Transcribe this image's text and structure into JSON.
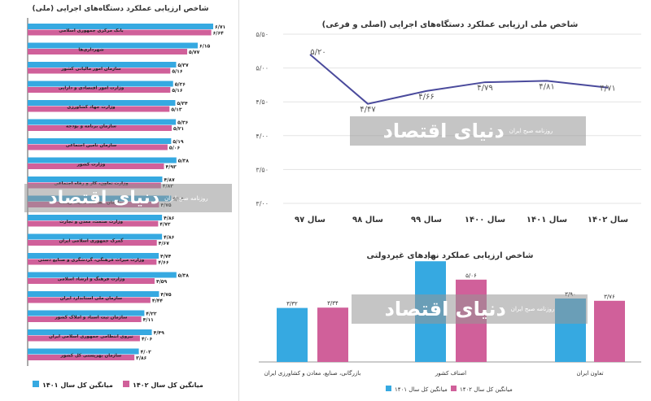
{
  "colors": {
    "series_1401": "#36a9e1",
    "series_1402": "#d0609a",
    "line": "#4a4a9c",
    "watermark": "#8c8c8c"
  },
  "watermark": {
    "brand": "دنیای اقتصاد",
    "tagline": "روزنامه صبح ایران"
  },
  "chart_data": [
    {
      "type": "bar",
      "orientation": "horizontal",
      "title": "شاخص ارزیابی عملکرد دستگاه‌های اجرایی (ملی)",
      "categories": [
        "بانک مرکزی جمهوری اسلامی",
        "شهرداری‌ها",
        "سازمان امور مالیاتی کشور",
        "وزارت امور اقتصادی و دارایی",
        "وزارت جهاد کشاورزی",
        "سازمان برنامه و بودجه",
        "سازمان تامین اجتماعی",
        "وزارت کشور",
        "وزارت تعاون، کار و رفاه اجتماعی",
        "سازمان حفاظت محیط زیست",
        "وزارت صنعت، معدن و تجارت",
        "گمرک جمهوری اسلامی ایران",
        "وزارت میراث فرهنگی، گردشگری و صنایع دستی",
        "وزارت فرهنگ و ارشاد اسلامی",
        "سازمان ملی استاندارد ایران",
        "سازمان ثبت اسناد و املاک کشور",
        "نیروی انتظامی جمهوری اسلامی ایران",
        "سازمان بهزیستی کل کشور"
      ],
      "value_labels_1401": [
        "۶/۷۱",
        "۶/۱۵",
        "۵/۳۷",
        "۵/۲۶",
        "۵/۳۴",
        "۵/۳۶",
        "۵/۱۹",
        "۵/۳۸",
        "۴/۸۷",
        "۵/۱۹",
        "۴/۸۶",
        "۴/۸۶",
        "۴/۷۴",
        "۵/۳۸",
        "۴/۷۵",
        "۴/۲۲",
        "۴/۴۹",
        "۴/۰۲"
      ],
      "value_labels_1402": [
        "۶/۶۴",
        "۵/۷۷",
        "۵/۱۶",
        "۵/۱۶",
        "۵/۱۳",
        "۵/۲۱",
        "۵/۰۶",
        "۴/۹۳",
        "۴/۸۲",
        "۴/۷۵",
        "۴/۷۲",
        "۴/۶۷",
        "۴/۶۶",
        "۴/۵۹",
        "۴/۴۴",
        "۴/۱۱",
        "۴/۰۶",
        "۳/۸۶"
      ],
      "series": [
        {
          "name": "میانگین کل سال ۱۴۰۱",
          "values": [
            6.71,
            6.15,
            5.37,
            5.26,
            5.34,
            5.36,
            5.19,
            5.38,
            4.87,
            5.19,
            4.86,
            4.86,
            4.74,
            5.38,
            4.75,
            4.22,
            4.49,
            4.02
          ]
        },
        {
          "name": "میانگین کل سال ۱۴۰۲",
          "values": [
            6.64,
            5.77,
            5.16,
            5.16,
            5.13,
            5.21,
            5.06,
            4.93,
            4.82,
            4.75,
            4.72,
            4.67,
            4.66,
            4.59,
            4.44,
            4.11,
            4.06,
            3.86
          ]
        }
      ],
      "xlim": [
        0,
        7
      ]
    },
    {
      "type": "line",
      "title": "شاخص ملی ارزیابی عملکرد دستگاه‌های اجرایی (اصلی و فرعی)",
      "categories": [
        "سال ۹۷",
        "سال ۹۸",
        "سال ۹۹",
        "سال ۱۴۰۰",
        "سال ۱۴۰۱",
        "سال ۱۴۰۲"
      ],
      "values": [
        5.2,
        4.47,
        4.66,
        4.79,
        4.81,
        4.71
      ],
      "value_labels": [
        "۵/۲۰",
        "۴/۴۷",
        "۴/۶۶",
        "۴/۷۹",
        "۴/۸۱",
        "۴/۷۱"
      ],
      "yticks": [
        "۵/۵۰",
        "۵/۰۰",
        "۴/۵۰",
        "۴/۰۰",
        "۳/۵۰",
        "۳/۰۰"
      ],
      "ylim": [
        3.0,
        5.5
      ]
    },
    {
      "type": "bar",
      "title": "شاخص ارزیابی عملکرد نهادهای غیردولتی",
      "categories": [
        "بازرگانی، صنایع، معادن و کشاورزی ایران",
        "اصناف کشور",
        "تعاون ایران"
      ],
      "value_labels_1401": [
        "۳/۳۲",
        "۶/۱۹",
        "۳/۹۰"
      ],
      "value_labels_1402": [
        "۳/۳۴",
        "۵/۰۶",
        "۳/۷۶"
      ],
      "series": [
        {
          "name": "میانگین کل سال ۱۴۰۱",
          "values": [
            3.32,
            6.19,
            3.9
          ]
        },
        {
          "name": "میانگین کل سال ۱۴۰۲",
          "values": [
            3.34,
            5.06,
            3.76
          ]
        }
      ],
      "ylim": [
        0,
        6.5
      ]
    }
  ]
}
